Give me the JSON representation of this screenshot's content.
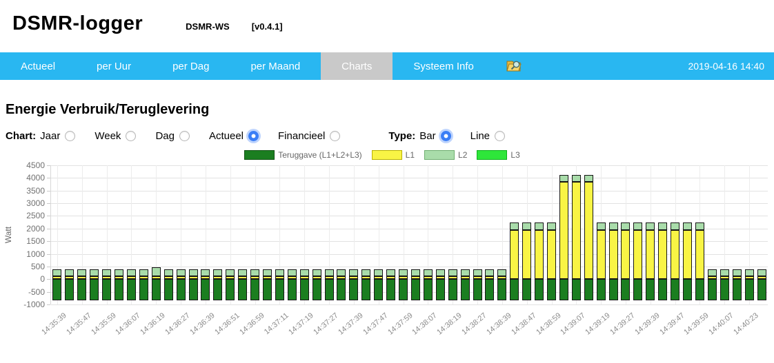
{
  "header": {
    "title": "DSMR-logger",
    "subtitle": "DSMR-WS",
    "version": "[v0.4.1]"
  },
  "nav": {
    "items": [
      {
        "label": "Actueel",
        "active": false
      },
      {
        "label": "per Uur",
        "active": false
      },
      {
        "label": "per Dag",
        "active": false
      },
      {
        "label": "per Maand",
        "active": false
      },
      {
        "label": "Charts",
        "active": true
      },
      {
        "label": "Systeem Info",
        "active": false
      }
    ],
    "icon": "folder-search-icon",
    "datetime": "2019-04-16 14:40",
    "bar_color": "#29b7f1",
    "active_tab_color": "#c9c9c9"
  },
  "main": {
    "heading": "Energie Verbruik/Teruglevering",
    "chart_group_label": "Chart:",
    "chart_options": [
      {
        "label": "Jaar",
        "checked": false
      },
      {
        "label": "Week",
        "checked": false
      },
      {
        "label": "Dag",
        "checked": false
      },
      {
        "label": "Actueel",
        "checked": true
      },
      {
        "label": "Financieel",
        "checked": false
      }
    ],
    "type_group_label": "Type:",
    "type_options": [
      {
        "label": "Bar",
        "checked": true
      },
      {
        "label": "Line",
        "checked": false
      }
    ]
  },
  "chart_data": {
    "type": "bar",
    "stacked": true,
    "title": "Energie Verbruik/Teruglevering",
    "ylabel": "Watt",
    "ylim": [
      -1000,
      4500
    ],
    "yticks": [
      4500,
      4000,
      3500,
      3000,
      2500,
      2000,
      1500,
      1000,
      500,
      0,
      -500,
      -1000
    ],
    "grid": true,
    "legend_position": "top",
    "bar_count": 58,
    "x_tick_every_n_bars": 2,
    "x_tick_labels": [
      "14:35:39",
      "14:35:47",
      "14:35:59",
      "14:36:07",
      "14:36:19",
      "14:36:27",
      "14:36:39",
      "14:36:51",
      "14:36:59",
      "14:37:11",
      "14:37:19",
      "14:37:27",
      "14:37:39",
      "14:37:47",
      "14:37:59",
      "14:38:07",
      "14:38:19",
      "14:38:27",
      "14:38:39",
      "14:38:47",
      "14:38:59",
      "14:39:07",
      "14:39:19",
      "14:39:27",
      "14:39:39",
      "14:39:47",
      "14:39:59",
      "14:40:07",
      "14:40:23"
    ],
    "series": [
      {
        "name": "Teruggave (L1+L2+L3)",
        "color": "#1b7e20",
        "border_color": "#115114",
        "values": [
          -850,
          -850,
          -850,
          -850,
          -850,
          -850,
          -850,
          -850,
          -850,
          -850,
          -850,
          -850,
          -850,
          -850,
          -850,
          -850,
          -850,
          -850,
          -850,
          -850,
          -850,
          -850,
          -850,
          -850,
          -850,
          -850,
          -850,
          -850,
          -850,
          -850,
          -850,
          -850,
          -850,
          -850,
          -850,
          -850,
          -850,
          -850,
          -850,
          -850,
          -850,
          -850,
          -850,
          -850,
          -850,
          -850,
          -850,
          -850,
          -850,
          -850,
          -850,
          -850,
          -850,
          -850,
          -850,
          -850,
          -850,
          -850
        ]
      },
      {
        "name": "L1",
        "color": "#f9f445",
        "border_color": "#b8b000",
        "values": [
          120,
          120,
          120,
          120,
          120,
          120,
          120,
          120,
          120,
          120,
          120,
          120,
          120,
          120,
          120,
          120,
          120,
          120,
          120,
          120,
          120,
          120,
          120,
          120,
          120,
          120,
          120,
          120,
          120,
          120,
          120,
          120,
          120,
          120,
          120,
          120,
          120,
          1950,
          1950,
          1950,
          1950,
          3850,
          3850,
          3850,
          1950,
          1950,
          1950,
          1950,
          1950,
          1950,
          1950,
          1950,
          1950,
          120,
          120,
          120,
          120,
          120
        ]
      },
      {
        "name": "L2",
        "color": "#a9dcaa",
        "border_color": "#6fae70",
        "values": [
          280,
          280,
          280,
          280,
          280,
          280,
          280,
          280,
          340,
          280,
          280,
          280,
          280,
          280,
          280,
          280,
          280,
          280,
          280,
          280,
          280,
          280,
          280,
          280,
          280,
          280,
          280,
          280,
          280,
          280,
          280,
          280,
          280,
          280,
          280,
          280,
          280,
          300,
          300,
          300,
          300,
          260,
          260,
          260,
          300,
          300,
          300,
          300,
          300,
          300,
          300,
          300,
          300,
          280,
          280,
          280,
          280,
          280
        ]
      },
      {
        "name": "L3",
        "color": "#2ee63a",
        "border_color": "#0fae1d",
        "values": [
          0,
          0,
          0,
          0,
          0,
          0,
          0,
          0,
          0,
          0,
          0,
          0,
          0,
          0,
          0,
          0,
          0,
          0,
          0,
          0,
          0,
          0,
          0,
          0,
          0,
          0,
          0,
          0,
          0,
          0,
          0,
          0,
          0,
          0,
          0,
          0,
          0,
          0,
          0,
          0,
          0,
          0,
          0,
          0,
          0,
          0,
          0,
          0,
          0,
          0,
          0,
          0,
          0,
          0,
          0,
          0,
          0,
          0
        ]
      }
    ]
  }
}
